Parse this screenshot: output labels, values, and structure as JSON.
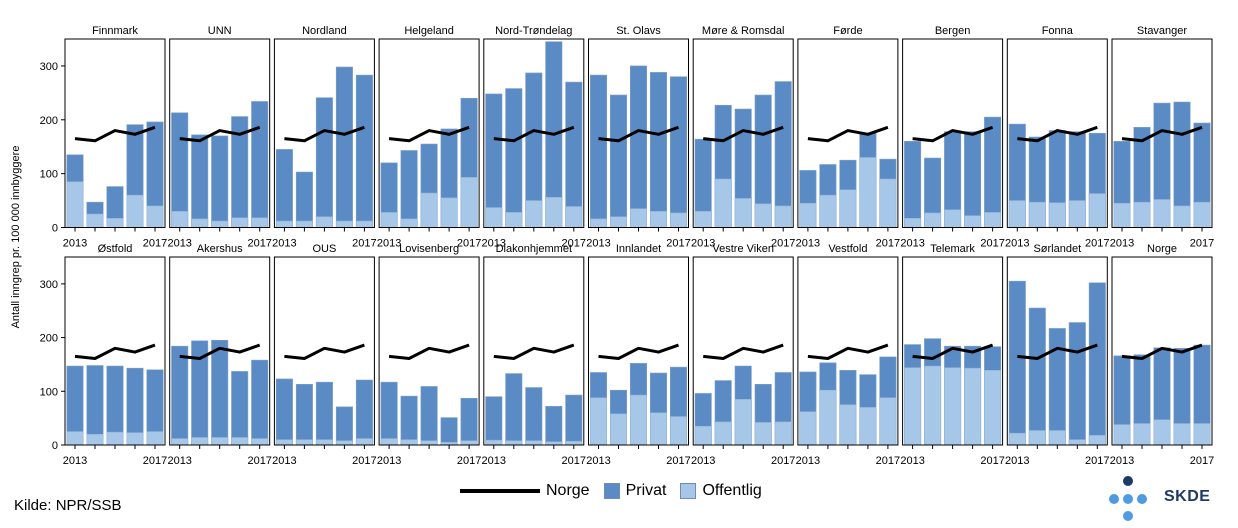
{
  "colors": {
    "private": "#5b8bc5",
    "public": "#a6c7e8",
    "norge_line": "#000000",
    "frame": "#000000"
  },
  "source": "Kilde: NPR/SSB",
  "legend": {
    "line": "Norge",
    "private": "Privat",
    "public": "Offentlig"
  },
  "logo": {
    "text": "SKDE"
  },
  "chart_data": {
    "type": "bar",
    "stacked": true,
    "ylabel": "Antall inngrep pr. 100 000 innbyggere",
    "ylim": [
      0,
      350
    ],
    "yticks": [
      0,
      100,
      200,
      300
    ],
    "years": [
      2013,
      2014,
      2015,
      2016,
      2017
    ],
    "xtick_labels": [
      "2013",
      "2017"
    ],
    "norge_line": [
      165,
      161,
      180,
      173,
      186
    ],
    "panels": [
      {
        "name": "Finnmark",
        "total": [
          135,
          47,
          76,
          191,
          196
        ],
        "public": [
          85,
          25,
          17,
          60,
          40
        ]
      },
      {
        "name": "UNN",
        "total": [
          213,
          172,
          170,
          206,
          234
        ],
        "public": [
          30,
          16,
          12,
          18,
          18
        ]
      },
      {
        "name": "Nordland",
        "total": [
          145,
          103,
          241,
          298,
          283
        ],
        "public": [
          12,
          12,
          20,
          12,
          12
        ]
      },
      {
        "name": "Helgeland",
        "total": [
          120,
          143,
          155,
          183,
          240
        ],
        "public": [
          28,
          16,
          64,
          55,
          93
        ]
      },
      {
        "name": "Nord-Trøndelag",
        "total": [
          248,
          258,
          287,
          345,
          270
        ],
        "public": [
          37,
          28,
          50,
          56,
          39
        ]
      },
      {
        "name": "St. Olavs",
        "total": [
          283,
          246,
          300,
          288,
          280
        ],
        "public": [
          16,
          20,
          35,
          30,
          27
        ]
      },
      {
        "name": "Møre & Romsdal",
        "total": [
          164,
          227,
          220,
          246,
          271
        ],
        "public": [
          30,
          90,
          54,
          44,
          40
        ]
      },
      {
        "name": "Førde",
        "total": [
          106,
          117,
          125,
          175,
          127
        ],
        "public": [
          45,
          60,
          70,
          130,
          90
        ]
      },
      {
        "name": "Bergen",
        "total": [
          160,
          129,
          178,
          178,
          205
        ],
        "public": [
          17,
          27,
          33,
          22,
          28
        ]
      },
      {
        "name": "Fonna",
        "total": [
          192,
          168,
          180,
          178,
          175
        ],
        "public": [
          50,
          47,
          46,
          50,
          63
        ]
      },
      {
        "name": "Stavanger",
        "total": [
          160,
          186,
          231,
          233,
          194
        ],
        "public": [
          45,
          47,
          52,
          40,
          47
        ]
      },
      {
        "name": "Østfold",
        "total": [
          147,
          148,
          147,
          143,
          140
        ],
        "public": [
          25,
          20,
          24,
          23,
          25
        ]
      },
      {
        "name": "Akershus",
        "total": [
          184,
          194,
          195,
          137,
          158
        ],
        "public": [
          12,
          14,
          14,
          14,
          12
        ]
      },
      {
        "name": "OUS",
        "total": [
          123,
          113,
          117,
          71,
          121
        ],
        "public": [
          10,
          10,
          10,
          8,
          12
        ]
      },
      {
        "name": "Lovisenberg",
        "total": [
          117,
          91,
          109,
          51,
          87
        ],
        "public": [
          12,
          10,
          8,
          5,
          8
        ]
      },
      {
        "name": "Diakonhjemmet",
        "total": [
          90,
          133,
          107,
          72,
          93
        ],
        "public": [
          9,
          8,
          8,
          6,
          7
        ]
      },
      {
        "name": "Innlandet",
        "total": [
          135,
          102,
          152,
          134,
          145
        ],
        "public": [
          88,
          58,
          93,
          60,
          53
        ]
      },
      {
        "name": "Vestre Viken",
        "total": [
          96,
          120,
          147,
          113,
          135
        ],
        "public": [
          35,
          43,
          85,
          42,
          43
        ]
      },
      {
        "name": "Vestfold",
        "total": [
          136,
          153,
          139,
          131,
          164
        ],
        "public": [
          62,
          102,
          75,
          70,
          88
        ]
      },
      {
        "name": "Telemark",
        "total": [
          187,
          198,
          184,
          184,
          183
        ],
        "public": [
          144,
          147,
          144,
          143,
          139
        ]
      },
      {
        "name": "Sørlandet",
        "total": [
          305,
          255,
          217,
          228,
          302
        ],
        "public": [
          22,
          27,
          27,
          10,
          18
        ]
      },
      {
        "name": "Norge",
        "total": [
          166,
          168,
          181,
          180,
          186
        ],
        "public": [
          38,
          40,
          47,
          40,
          40
        ]
      }
    ]
  }
}
